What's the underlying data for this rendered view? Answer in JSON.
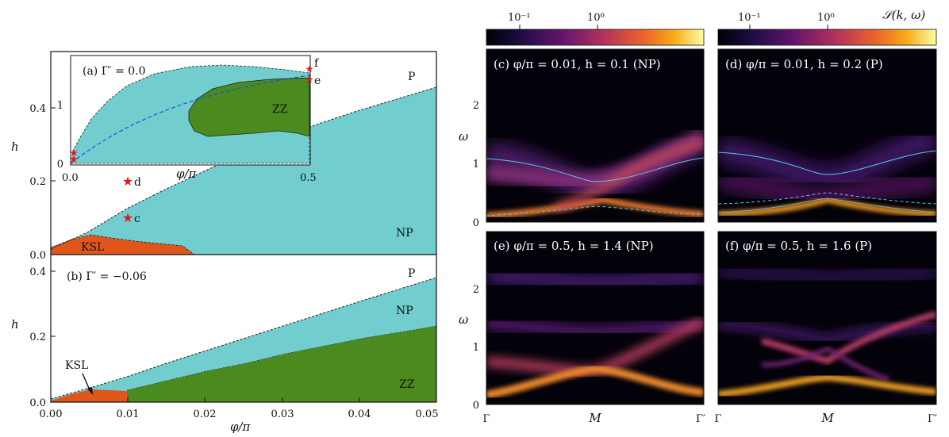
{
  "figure": {
    "left": {
      "top_panel": {
        "xlim": [
          0,
          0.05
        ],
        "ylim": [
          0,
          0.55
        ],
        "yticks": [
          "0.0",
          "0.2",
          "0.4"
        ],
        "ylabel": "h",
        "regions": {
          "P": "P",
          "NP": "NP",
          "KSL": "KSL"
        },
        "points": [
          {
            "label": "c",
            "x": 0.01,
            "h": 0.1
          },
          {
            "label": "d",
            "x": 0.01,
            "h": 0.2
          }
        ]
      },
      "inset": {
        "title": "(a) Γ′ = 0.0",
        "xticks": [
          "0.0",
          "0.5"
        ],
        "yticks": [
          "0",
          "1"
        ],
        "xlabel": "φ/π",
        "region_zz": "ZZ",
        "points": [
          "f",
          "e"
        ]
      },
      "bottom_panel": {
        "title": "(b) Γ′ = −0.06",
        "xlim": [
          0,
          0.05
        ],
        "ylim": [
          0,
          0.45
        ],
        "xticks": [
          "0.00",
          "0.01",
          "0.02",
          "0.03",
          "0.04",
          "0.05"
        ],
        "yticks": [
          "0.0",
          "0.2",
          "0.4"
        ],
        "ylabel": "h",
        "xlabel": "φ/π",
        "regions": {
          "P": "P",
          "NP": "NP",
          "ZZ": "ZZ",
          "KSL": "KSL"
        }
      }
    },
    "colorbars": {
      "ticks": [
        "10⁻¹",
        "10⁰"
      ],
      "label": "𝒮(k, ω)"
    },
    "spectra": {
      "ylabel": "ω",
      "yticks": [
        "0",
        "1",
        "2"
      ],
      "xticks": [
        "Γ",
        "M",
        "Γ′"
      ],
      "panels": [
        {
          "id": "c",
          "title": "(c) φ/π = 0.01, h = 0.1 (NP)"
        },
        {
          "id": "d",
          "title": "(d) φ/π = 0.01, h = 0.2 (P)"
        },
        {
          "id": "e",
          "title": "(e) φ/π = 0.5, h = 1.4 (NP)"
        },
        {
          "id": "f",
          "title": "(f) φ/π = 0.5, h = 1.6 (P)"
        }
      ]
    },
    "colors": {
      "np": "#72cece",
      "zz": "#4a8a1e",
      "ksl": "#e0561a",
      "star": "#e8151b",
      "band": "#5ac8e6"
    }
  }
}
